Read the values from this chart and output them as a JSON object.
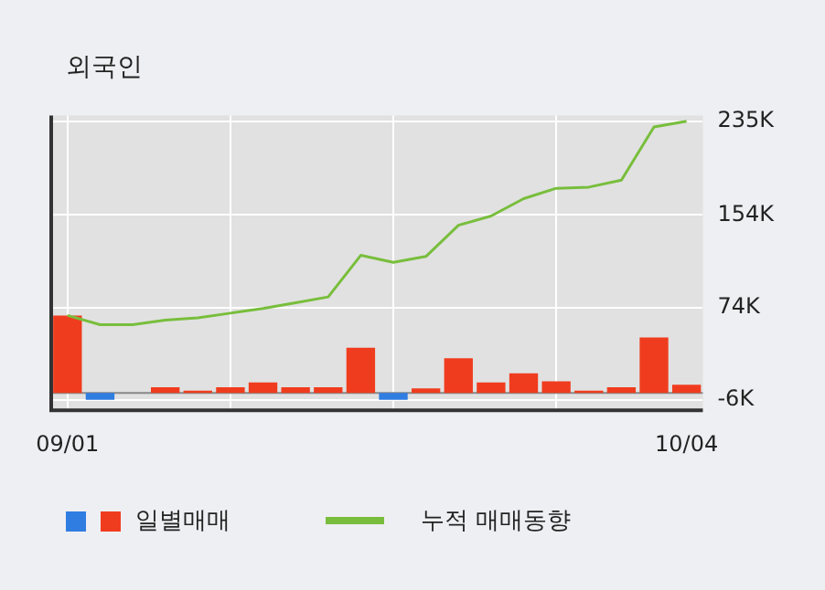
{
  "chart_data": {
    "type": "bar",
    "title": "외국인",
    "categories": [
      "09/01",
      null,
      null,
      null,
      null,
      null,
      null,
      null,
      null,
      null,
      null,
      null,
      null,
      null,
      null,
      null,
      null,
      null,
      null,
      "10/04"
    ],
    "series": [
      {
        "name": "일별매매",
        "colors": [
          "#f03c1e",
          "#2f7de1",
          "#f03c1e",
          "#f03c1e",
          "#f03c1e",
          "#f03c1e",
          "#f03c1e",
          "#f03c1e",
          "#f03c1e",
          "#f03c1e",
          "#2f7de1",
          "#f03c1e",
          "#f03c1e",
          "#f03c1e",
          "#f03c1e",
          "#f03c1e",
          "#f03c1e",
          "#f03c1e",
          "#f03c1e",
          "#f03c1e"
        ],
        "values": [
          67,
          -6,
          0,
          5,
          2,
          5,
          9,
          5,
          5,
          39,
          -6,
          4,
          30,
          9,
          17,
          10,
          2,
          5,
          48,
          7
        ]
      },
      {
        "name": "누적 매매동향",
        "type": "line",
        "color": "#78be3c",
        "values": [
          67,
          59,
          59,
          63,
          65,
          69,
          73,
          78,
          83,
          119,
          113,
          118,
          145,
          153,
          168,
          177,
          178,
          184,
          230,
          235
        ]
      }
    ],
    "ylim": [
      -15,
      240
    ],
    "yticks": [
      {
        "value": -6,
        "label": "-6K"
      },
      {
        "value": 74,
        "label": "74K"
      },
      {
        "value": 154,
        "label": "154K"
      },
      {
        "value": 235,
        "label": "235K"
      }
    ],
    "grid": true,
    "legend": "bottom",
    "marker": "none"
  }
}
